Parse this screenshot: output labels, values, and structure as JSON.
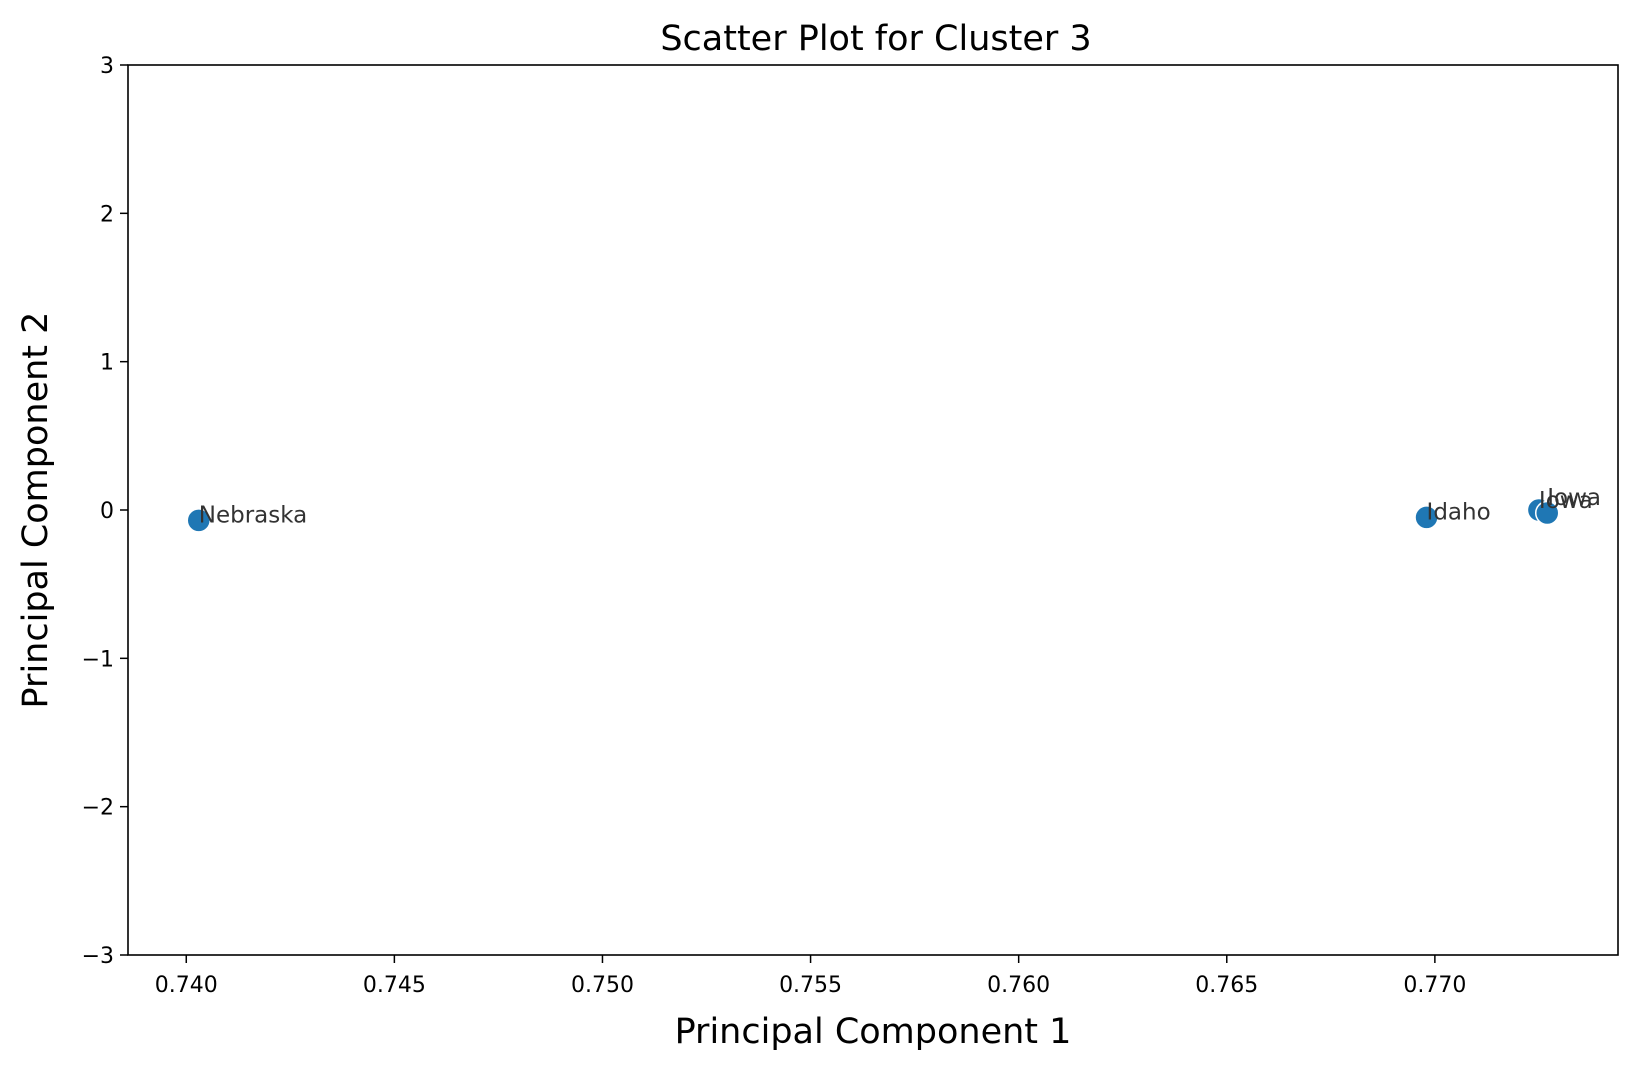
{
  "chart_data": {
    "type": "scatter",
    "title": "Scatter Plot for Cluster 3",
    "xlabel": "Principal Component 1",
    "ylabel": "Principal Component 2",
    "xlim": [
      0.7386,
      0.7744
    ],
    "ylim": [
      -3,
      3
    ],
    "xticks": [
      0.74,
      0.745,
      0.75,
      0.755,
      0.76,
      0.765,
      0.77
    ],
    "xtick_labels": [
      "0.740",
      "0.745",
      "0.750",
      "0.755",
      "0.760",
      "0.765",
      "0.770"
    ],
    "yticks": [
      -3,
      -2,
      -1,
      0,
      1,
      2,
      3
    ],
    "ytick_labels": [
      "−3",
      "−2",
      "−1",
      "0",
      "1",
      "2",
      "3"
    ],
    "grid": false,
    "point_color": "#1f77b4",
    "points": [
      {
        "label": "Nebraska",
        "x": 0.7403,
        "y": -0.07
      },
      {
        "label": "Idaho",
        "x": 0.7698,
        "y": -0.05
      },
      {
        "label": "Iowa",
        "x": 0.7725,
        "y": 0.0
      },
      {
        "label": "Iowa",
        "x": 0.7727,
        "y": -0.02
      }
    ]
  }
}
